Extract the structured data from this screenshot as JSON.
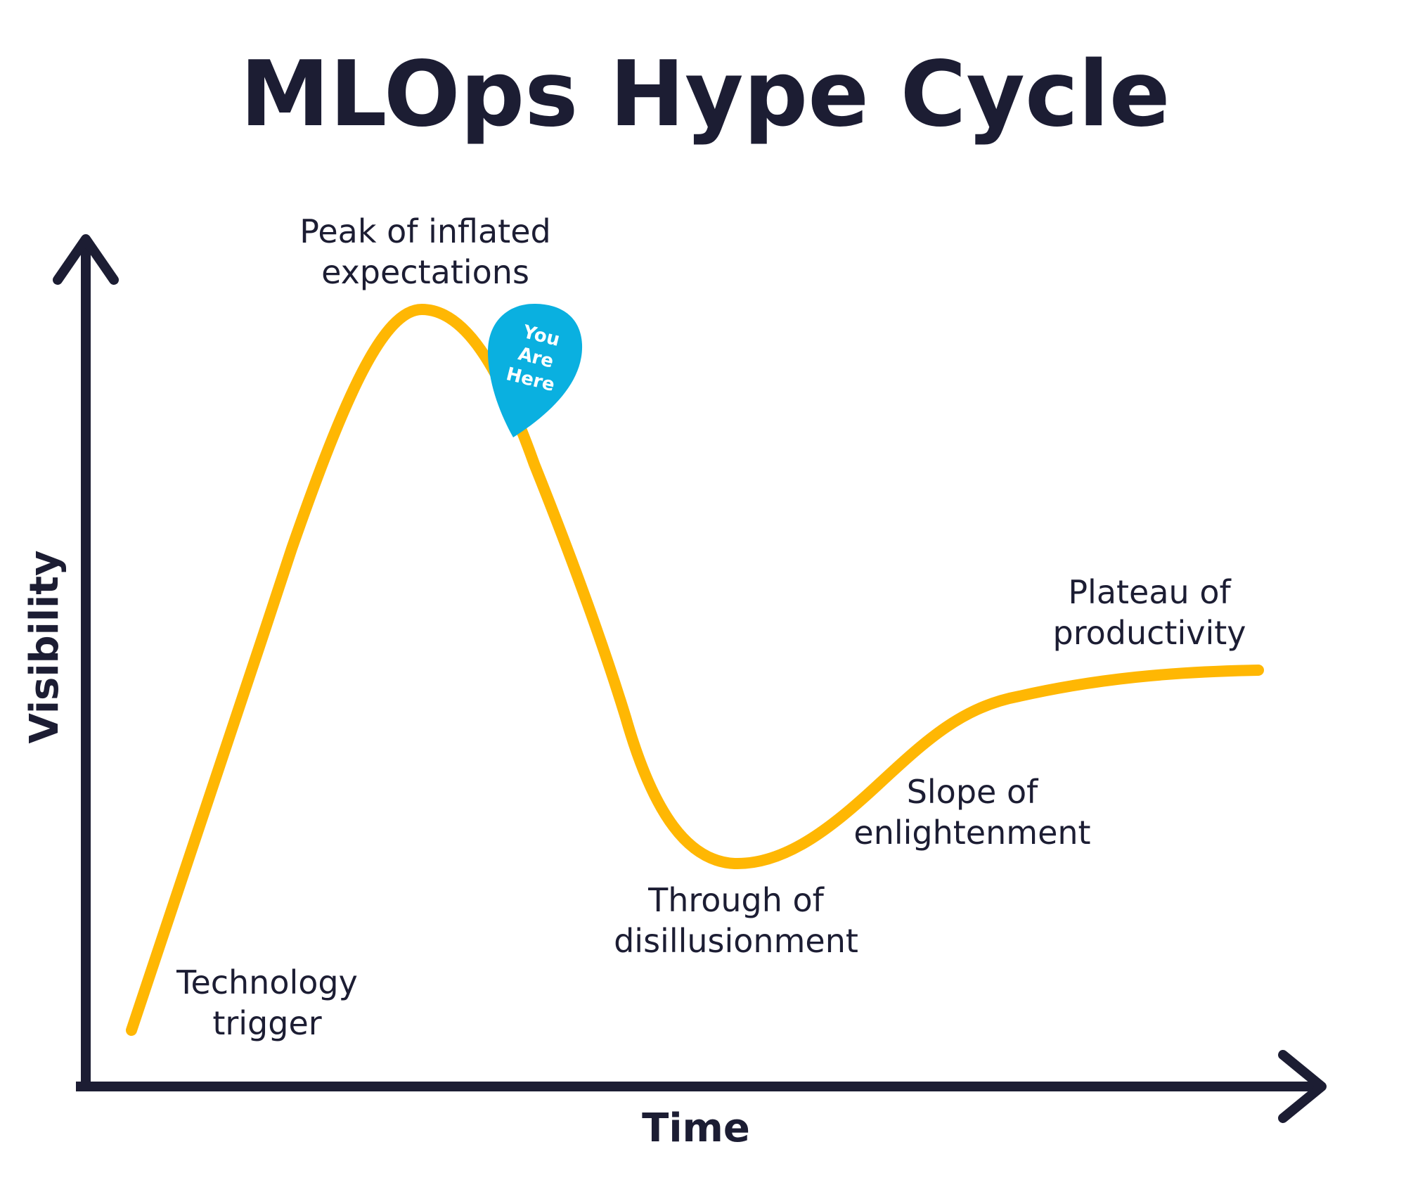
{
  "title": "MLOps Hype Cycle",
  "axes": {
    "x_label": "Time",
    "y_label": "Visibility"
  },
  "phases": {
    "trigger": [
      "Technology",
      "trigger"
    ],
    "peak": [
      "Peak of inflated",
      "expectations"
    ],
    "trough": [
      "Through of",
      "disillusionment"
    ],
    "slope": [
      "Slope of",
      "enlightenment"
    ],
    "plateau": [
      "Plateau of",
      "productivity"
    ]
  },
  "marker": {
    "lines": [
      "You",
      "Are",
      "Here"
    ]
  },
  "colors": {
    "curve": "#ffb703",
    "axis": "#1c1d33",
    "text": "#1c1d33",
    "marker": "#0ab0e0"
  }
}
